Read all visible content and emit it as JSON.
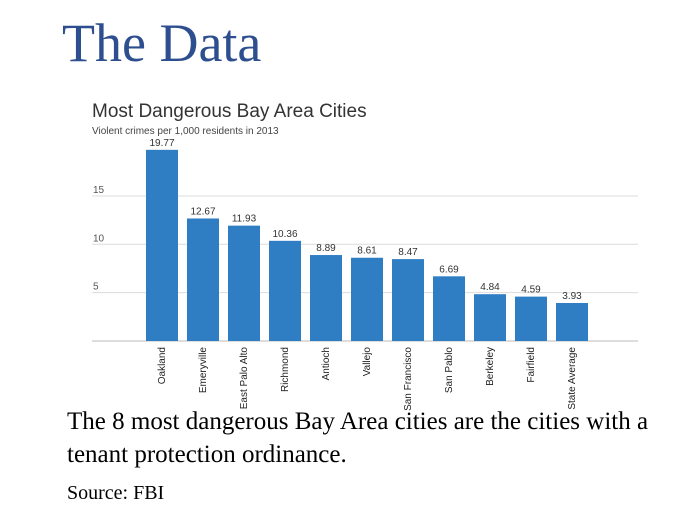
{
  "slide": {
    "title": "The Data",
    "caption": "The 8 most dangerous Bay Area cities are the cities with a tenant protection ordinance.",
    "source": "Source: FBI"
  },
  "colors": {
    "bar": "#2f7ec4",
    "title": "#2e4f8f",
    "grid": "#dcdcdc"
  },
  "chart_data": {
    "type": "bar",
    "title": "Most Dangerous Bay Area Cities",
    "subtitle": "Violent crimes per 1,000 residents in 2013",
    "categories": [
      "Oakland",
      "Emeryville",
      "East Palo Alto",
      "Richmond",
      "Antioch",
      "Vallejo",
      "San Francisco",
      "San Pablo",
      "Berkeley",
      "Fairfield",
      "State Average"
    ],
    "values": [
      19.77,
      12.67,
      11.93,
      10.36,
      8.89,
      8.61,
      8.47,
      6.69,
      4.84,
      4.59,
      3.93
    ],
    "value_labels": [
      "19.77",
      "12.67",
      "11.93",
      "10.36",
      "8.89",
      "8.61",
      "8.47",
      "6.69",
      "4.84",
      "4.59",
      "3.93"
    ],
    "yticks": [
      5,
      10,
      15
    ],
    "ylim": [
      0,
      20
    ],
    "grid": true,
    "xlabel": "",
    "ylabel": ""
  }
}
